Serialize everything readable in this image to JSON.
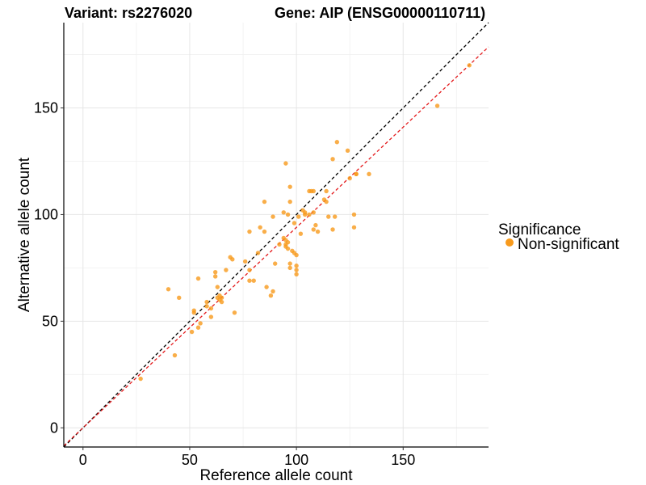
{
  "chart_data": {
    "type": "scatter",
    "title_left": "Variant: rs2276020",
    "title_right": "Gene: AIP (ENSG00000110711)",
    "xlabel": "Reference allele count",
    "ylabel": "Alternative allele count",
    "xlim": [
      -9,
      190
    ],
    "ylim": [
      -9,
      190
    ],
    "xticks": [
      0,
      50,
      100,
      150
    ],
    "yticks": [
      0,
      50,
      100,
      150
    ],
    "grid": true,
    "legend": {
      "title": "Significance",
      "entries": [
        {
          "label": "Non-significant",
          "color": "#f89a1c"
        }
      ],
      "position": "right"
    },
    "reference_lines": [
      {
        "name": "identity",
        "slope": 1.0,
        "intercept": 0,
        "color": "#000000",
        "style": "dashed"
      },
      {
        "name": "fit",
        "slope": 0.94,
        "intercept": 0,
        "color": "#e41a1c",
        "style": "dashed"
      }
    ],
    "series": [
      {
        "name": "Non-significant",
        "color": "#f89a1c",
        "x": [
          27,
          43,
          40,
          45,
          51,
          52,
          54,
          54,
          55,
          52,
          58,
          58,
          60,
          60,
          62,
          62,
          63,
          63,
          64,
          64,
          65,
          65,
          67,
          69,
          70,
          71,
          76,
          78,
          78,
          78,
          80,
          82,
          83,
          85,
          85,
          86,
          88,
          89,
          89,
          90,
          92,
          94,
          94,
          95,
          95,
          95,
          95,
          96,
          96,
          96,
          97,
          97,
          97,
          97,
          98,
          99,
          99,
          100,
          100,
          100,
          100,
          101,
          102,
          103,
          104,
          104,
          106,
          106,
          107,
          108,
          108,
          108,
          109,
          110,
          113,
          114,
          114,
          115,
          117,
          117,
          118,
          119,
          124,
          125,
          127,
          127,
          128,
          128,
          134,
          166,
          181
        ],
        "y": [
          23,
          34,
          65,
          61,
          45,
          54,
          47,
          70,
          49,
          55,
          59,
          57,
          52,
          56,
          73,
          71,
          66,
          61,
          60,
          62,
          59,
          61,
          74,
          80,
          79,
          54,
          78,
          74,
          69,
          92,
          69,
          82,
          94,
          106,
          92,
          66,
          62,
          64,
          99,
          77,
          86,
          101,
          89,
          88,
          86,
          85,
          124,
          87,
          84,
          100,
          106,
          113,
          77,
          75,
          83,
          82,
          96,
          81,
          72,
          74,
          76,
          99,
          91,
          102,
          101,
          100,
          100,
          111,
          111,
          111,
          101,
          93,
          95,
          92,
          107,
          106,
          111,
          99,
          93,
          126,
          99,
          134,
          130,
          117,
          100,
          94,
          119,
          119,
          119,
          151,
          170
        ]
      }
    ]
  }
}
